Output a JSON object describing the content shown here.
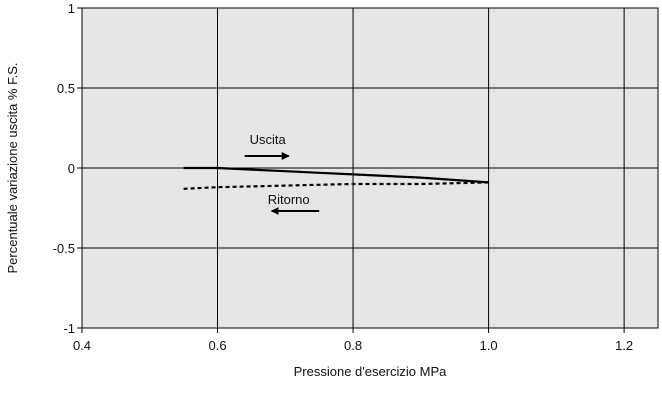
{
  "chart_data": {
    "type": "line",
    "title": "",
    "xlabel": "Pressione d'esercizio  MPa",
    "ylabel": "Percentuale variazione uscita  % F.S.",
    "xlim": [
      0.4,
      1.25
    ],
    "ylim": [
      -1,
      1
    ],
    "x_ticks": [
      0.4,
      0.6,
      0.8,
      1.0,
      1.2
    ],
    "x_tick_labels": [
      "0.4",
      "0.6",
      "0.8",
      "1.0",
      "1.2"
    ],
    "y_ticks": [
      -1,
      -0.5,
      0,
      0.5,
      1
    ],
    "y_tick_labels": [
      "-1",
      "-0.5",
      "0",
      "0.5",
      "1"
    ],
    "grid": true,
    "plot_background": "#e6e6e6",
    "series": [
      {
        "name": "Uscita",
        "style": "solid",
        "color": "#000000",
        "x": [
          0.55,
          0.6,
          0.65,
          0.7,
          0.75,
          0.8,
          0.85,
          0.9,
          0.95,
          1.0
        ],
        "y": [
          0.0,
          0.0,
          -0.01,
          -0.02,
          -0.03,
          -0.04,
          -0.05,
          -0.06,
          -0.075,
          -0.09
        ]
      },
      {
        "name": "Ritorno",
        "style": "dashed",
        "color": "#000000",
        "x": [
          0.55,
          0.6,
          0.65,
          0.7,
          0.75,
          0.8,
          0.85,
          0.9,
          0.95,
          1.0
        ],
        "y": [
          -0.13,
          -0.12,
          -0.115,
          -0.11,
          -0.105,
          -0.1,
          -0.1,
          -0.1,
          -0.095,
          -0.09
        ]
      }
    ],
    "annotations": [
      {
        "text": "Uscita",
        "series": "Uscita",
        "arrow": "right"
      },
      {
        "text": "Ritorno",
        "series": "Ritorno",
        "arrow": "left"
      }
    ]
  }
}
